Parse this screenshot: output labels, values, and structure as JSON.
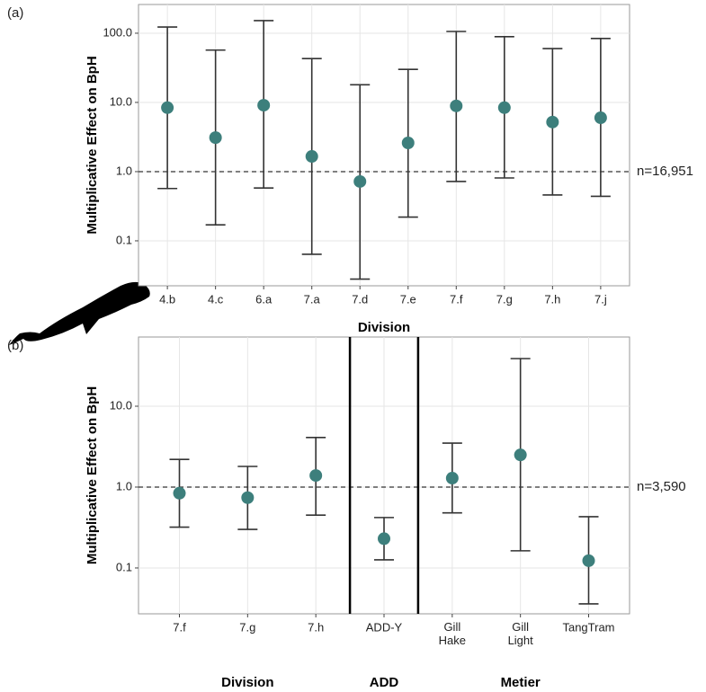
{
  "chart_data": [
    {
      "type": "errorbar",
      "panel_label": "(a)",
      "x_label": "Division",
      "y_label": "Multiplicative Effect on BpH",
      "categories": [
        "4.b",
        "4.c",
        "6.a",
        "7.a",
        "7.d",
        "7.e",
        "7.f",
        "7.g",
        "7.h",
        "7.j"
      ],
      "values": [
        8.4,
        3.1,
        9.1,
        1.66,
        0.72,
        2.6,
        8.9,
        8.4,
        5.2,
        6.0
      ],
      "lower": [
        0.57,
        0.17,
        0.58,
        0.064,
        0.028,
        0.22,
        0.72,
        0.81,
        0.46,
        0.44
      ],
      "upper": [
        123,
        57,
        152,
        43,
        18,
        30,
        106,
        89,
        60,
        84
      ],
      "color": "#3d7f7c",
      "log_scale": true,
      "grid": true,
      "ylim": [
        0.0224,
        260
      ],
      "yticks": [
        {
          "value": 0.1,
          "label": "0.1"
        },
        {
          "value": 1,
          "label": "1.0"
        },
        {
          "value": 10,
          "label": "10.0"
        },
        {
          "value": 100,
          "label": "100.0"
        }
      ],
      "reference_value": 1,
      "sample_label": "n=16,951"
    },
    {
      "type": "errorbar",
      "panel_label": "(b)",
      "y_label": "Multiplicative Effect on BpH",
      "categories": [
        "7.f",
        "7.g",
        "7.h",
        "ADD-Y",
        "Gill Hake",
        "Gill Light",
        "TangTram"
      ],
      "values": [
        0.84,
        0.74,
        1.39,
        0.23,
        1.29,
        2.5,
        0.123
      ],
      "lower": [
        0.32,
        0.3,
        0.45,
        0.126,
        0.48,
        0.163,
        0.036
      ],
      "upper": [
        2.2,
        1.8,
        4.1,
        0.42,
        3.5,
        38.8,
        0.43
      ],
      "color": "#3d7f7c",
      "log_scale": true,
      "grid": true,
      "ylim": [
        0.0271,
        71.7
      ],
      "yticks": [
        {
          "value": 0.1,
          "label": "0.1"
        },
        {
          "value": 1,
          "label": "1.0"
        },
        {
          "value": 10,
          "label": "10.0"
        }
      ],
      "reference_value": 1,
      "sample_label": "n=3,590",
      "group_labels": [
        "Division",
        "ADD",
        "Metier"
      ]
    }
  ]
}
